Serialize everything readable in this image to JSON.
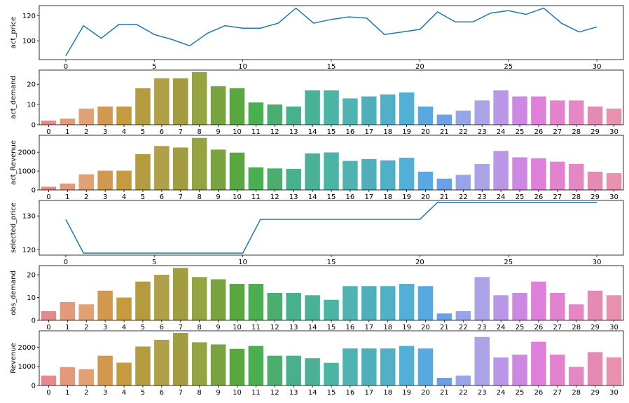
{
  "chart_data": [
    {
      "type": "line",
      "ylabel": "act_price",
      "x": [
        0,
        1,
        2,
        3,
        4,
        5,
        6,
        7,
        8,
        9,
        10,
        11,
        12,
        13,
        14,
        15,
        16,
        17,
        18,
        19,
        20,
        21,
        22,
        23,
        24,
        25,
        26,
        27,
        28,
        29,
        30
      ],
      "values": [
        88,
        112,
        102,
        113,
        113,
        105,
        101,
        96,
        106,
        112,
        110,
        110,
        114,
        126,
        114,
        117,
        119,
        118,
        105,
        107,
        109,
        123,
        115,
        115,
        122,
        124,
        121,
        126,
        114,
        107,
        111
      ],
      "color": "#1f77b4",
      "xlim": [
        -1.5,
        31.5
      ],
      "ylim": [
        85,
        128
      ],
      "xticks": [
        0,
        5,
        10,
        15,
        20,
        25,
        30
      ],
      "yticks": [
        100,
        120
      ]
    },
    {
      "type": "bar",
      "ylabel": "act_demand",
      "categories": [
        "0",
        "1",
        "2",
        "3",
        "4",
        "5",
        "6",
        "7",
        "8",
        "9",
        "10",
        "11",
        "12",
        "13",
        "14",
        "15",
        "16",
        "17",
        "18",
        "19",
        "20",
        "21",
        "22",
        "23",
        "24",
        "25",
        "26",
        "27",
        "28",
        "29",
        "30"
      ],
      "values": [
        2,
        3,
        8,
        9,
        9,
        18,
        23,
        23,
        26,
        19,
        18,
        11,
        10,
        9,
        17,
        17,
        13,
        14,
        15,
        16,
        9,
        5,
        7,
        12,
        17,
        14,
        14,
        12,
        12,
        9,
        8
      ],
      "ylim": [
        0,
        27
      ],
      "yticks": [
        0,
        10,
        20
      ]
    },
    {
      "type": "bar",
      "ylabel": "act_Revenue",
      "categories": [
        "0",
        "1",
        "2",
        "3",
        "4",
        "5",
        "6",
        "7",
        "8",
        "9",
        "10",
        "11",
        "12",
        "13",
        "14",
        "15",
        "16",
        "17",
        "18",
        "19",
        "20",
        "21",
        "22",
        "23",
        "24",
        "25",
        "26",
        "27",
        "28",
        "29",
        "30"
      ],
      "values": [
        170,
        340,
        830,
        1020,
        1020,
        1900,
        2330,
        2250,
        2760,
        2140,
        1980,
        1200,
        1140,
        1120,
        1940,
        1990,
        1540,
        1640,
        1570,
        1710,
        970,
        600,
        800,
        1380,
        2070,
        1730,
        1680,
        1500,
        1380,
        970,
        890
      ],
      "ylim": [
        0,
        2900
      ],
      "yticks": [
        0,
        1000,
        2000
      ]
    },
    {
      "type": "line",
      "ylabel": "selected_price",
      "x": [
        0,
        1,
        2,
        3,
        4,
        5,
        6,
        7,
        8,
        9,
        10,
        11,
        12,
        13,
        14,
        15,
        16,
        17,
        18,
        19,
        20,
        21,
        22,
        23,
        24,
        25,
        26,
        27,
        28,
        29,
        30
      ],
      "values": [
        129,
        119,
        119,
        119,
        119,
        119,
        119,
        119,
        119,
        119,
        119,
        129,
        129,
        129,
        129,
        129,
        129,
        129,
        129,
        129,
        129,
        134,
        134,
        134,
        134,
        134,
        134,
        134,
        134,
        134,
        134
      ],
      "color": "#1f77b4",
      "xlim": [
        -1.5,
        31.5
      ],
      "ylim": [
        118.4,
        134.6
      ],
      "xticks": [
        0,
        5,
        10,
        15,
        20,
        25,
        30
      ],
      "yticks": [
        120,
        130
      ]
    },
    {
      "type": "bar",
      "ylabel": "obs_demand",
      "categories": [
        "0",
        "1",
        "2",
        "3",
        "4",
        "5",
        "6",
        "7",
        "8",
        "9",
        "10",
        "11",
        "12",
        "13",
        "14",
        "15",
        "16",
        "17",
        "18",
        "19",
        "20",
        "21",
        "22",
        "23",
        "24",
        "25",
        "26",
        "27",
        "28",
        "29",
        "30"
      ],
      "values": [
        4,
        8,
        7,
        13,
        10,
        17,
        20,
        23,
        19,
        18,
        16,
        16,
        12,
        12,
        11,
        9,
        15,
        15,
        15,
        16,
        15,
        3,
        4,
        19,
        11,
        12,
        17,
        12,
        7,
        13,
        11
      ],
      "ylim": [
        0,
        24
      ],
      "yticks": [
        0,
        10,
        20
      ]
    },
    {
      "type": "bar",
      "ylabel": "Revenue",
      "categories": [
        "0",
        "1",
        "2",
        "3",
        "4",
        "5",
        "6",
        "7",
        "8",
        "9",
        "10",
        "11",
        "12",
        "13",
        "14",
        "15",
        "16",
        "17",
        "18",
        "19",
        "20",
        "21",
        "22",
        "23",
        "24",
        "25",
        "26",
        "27",
        "28",
        "29",
        "30"
      ],
      "values": [
        520,
        960,
        850,
        1550,
        1190,
        2030,
        2380,
        2740,
        2250,
        2140,
        1910,
        2060,
        1550,
        1550,
        1420,
        1180,
        1930,
        1930,
        1930,
        2060,
        1930,
        400,
        520,
        2530,
        1460,
        1610,
        2280,
        1610,
        970,
        1740,
        1470
      ],
      "ylim": [
        0,
        2850
      ],
      "yticks": [
        0,
        1000,
        2000
      ]
    }
  ],
  "palette": [
    "#e48a8a",
    "#e29a7a",
    "#e2a173",
    "#d3984f",
    "#c69a3f",
    "#b39c40",
    "#b0a04a",
    "#a29e3f",
    "#95a343",
    "#78a340",
    "#58a83f",
    "#4aaf51",
    "#4bae6e",
    "#48b08a",
    "#4ab197",
    "#4bb4a5",
    "#4fb3b1",
    "#4fb0ba",
    "#4fb0c8",
    "#52afd6",
    "#58a9e2",
    "#6aa0e5",
    "#97a5e8",
    "#aba2e8",
    "#b997e6",
    "#ce88e3",
    "#e07fdb",
    "#e383ce",
    "#e487c3",
    "#e48ab5",
    "#e892ad"
  ]
}
